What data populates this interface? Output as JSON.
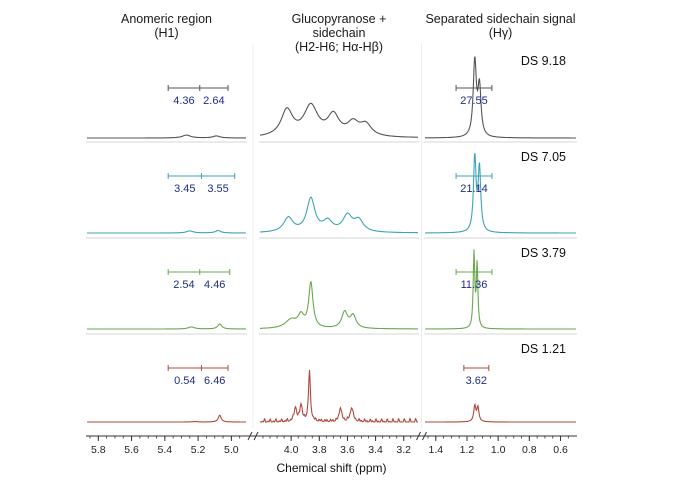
{
  "chart_data": {
    "type": "line",
    "xlabel": "Chemical shift (ppm)",
    "panels": [
      {
        "id": "anomeric",
        "title_lines": [
          "Anomeric region",
          "(H1)"
        ],
        "xlim": [
          5.85,
          4.93
        ],
        "ticks": [
          "5.8",
          "5.6",
          "5.4",
          "5.2",
          "5.0"
        ]
      },
      {
        "id": "glucopyranose",
        "title_lines": [
          "Glucopyranose +",
          "sidechain",
          "(H2-H6; Hα-Hβ)"
        ],
        "xlim": [
          4.2,
          3.12
        ],
        "ticks": [
          "4.0",
          "3.8",
          "3.6",
          "3.4",
          "3.2"
        ]
      },
      {
        "id": "sidechain",
        "title_lines": [
          "Separated sidechain signal",
          "(Hγ)"
        ],
        "xlim": [
          1.45,
          0.52
        ],
        "ticks": [
          "1.4",
          "1.2",
          "1.0",
          "0.8",
          "0.6"
        ]
      }
    ],
    "series": [
      {
        "name": "DS 9.18",
        "color": "#555555",
        "h1_integrals": [
          {
            "value": "4.36",
            "range": [
              5.38,
              5.19
            ]
          },
          {
            "value": "2.64",
            "range": [
              5.19,
              5.02
            ]
          }
        ],
        "sidechain_integral": {
          "value": "27.55",
          "range": [
            1.27,
            1.04
          ]
        },
        "peaks": {
          "anomeric": [
            {
              "ppm": 5.27,
              "height": 0.14,
              "width": 0.03
            },
            {
              "ppm": 5.09,
              "height": 0.1,
              "width": 0.025
            }
          ],
          "glucopyranose": [
            {
              "ppm": 4.03,
              "height": 0.45,
              "width": 0.05
            },
            {
              "ppm": 3.86,
              "height": 0.52,
              "width": 0.06
            },
            {
              "ppm": 3.7,
              "height": 0.35,
              "width": 0.05
            },
            {
              "ppm": 3.56,
              "height": 0.22,
              "width": 0.05
            },
            {
              "ppm": 3.47,
              "height": 0.2,
              "width": 0.05
            }
          ],
          "sidechain": [
            {
              "ppm": 1.15,
              "height": 1.0,
              "width": 0.012
            },
            {
              "ppm": 1.12,
              "height": 0.65,
              "width": 0.012
            }
          ]
        }
      },
      {
        "name": "DS 7.05",
        "color": "#3fa3b5",
        "h1_integrals": [
          {
            "value": "3.45",
            "range": [
              5.38,
              5.18
            ]
          },
          {
            "value": "3.55",
            "range": [
              5.18,
              4.98
            ]
          }
        ],
        "sidechain_integral": {
          "value": "21.14",
          "range": [
            1.27,
            1.04
          ]
        },
        "peaks": {
          "anomeric": [
            {
              "ppm": 5.25,
              "height": 0.1,
              "width": 0.025
            },
            {
              "ppm": 5.08,
              "height": 0.12,
              "width": 0.02
            }
          ],
          "glucopyranose": [
            {
              "ppm": 4.02,
              "height": 0.25,
              "width": 0.04
            },
            {
              "ppm": 3.86,
              "height": 0.58,
              "width": 0.035
            },
            {
              "ppm": 3.74,
              "height": 0.18,
              "width": 0.04
            },
            {
              "ppm": 3.6,
              "height": 0.28,
              "width": 0.04
            },
            {
              "ppm": 3.52,
              "height": 0.2,
              "width": 0.04
            }
          ],
          "sidechain": [
            {
              "ppm": 1.15,
              "height": 1.0,
              "width": 0.01
            },
            {
              "ppm": 1.12,
              "height": 0.85,
              "width": 0.01
            }
          ]
        }
      },
      {
        "name": "DS 3.79",
        "color": "#6aa84f",
        "h1_integrals": [
          {
            "value": "2.54",
            "range": [
              5.38,
              5.19
            ]
          },
          {
            "value": "4.46",
            "range": [
              5.19,
              5.01
            ]
          }
        ],
        "sidechain_integral": {
          "value": "11.36",
          "range": [
            1.27,
            1.04
          ]
        },
        "peaks": {
          "anomeric": [
            {
              "ppm": 5.24,
              "height": 0.1,
              "width": 0.022
            },
            {
              "ppm": 5.07,
              "height": 0.24,
              "width": 0.015
            }
          ],
          "glucopyranose": [
            {
              "ppm": 4.0,
              "height": 0.15,
              "width": 0.05
            },
            {
              "ppm": 3.93,
              "height": 0.2,
              "width": 0.025
            },
            {
              "ppm": 3.86,
              "height": 0.78,
              "width": 0.018
            },
            {
              "ppm": 3.62,
              "height": 0.28,
              "width": 0.025
            },
            {
              "ppm": 3.56,
              "height": 0.22,
              "width": 0.025
            }
          ],
          "sidechain": [
            {
              "ppm": 1.155,
              "height": 1.0,
              "width": 0.006
            },
            {
              "ppm": 1.135,
              "height": 0.85,
              "width": 0.006
            }
          ]
        }
      },
      {
        "name": "DS 1.21",
        "color": "#b04a3f",
        "h1_integrals": [
          {
            "value": "0.54",
            "range": [
              5.38,
              5.18
            ]
          },
          {
            "value": "6.46",
            "range": [
              5.18,
              5.02
            ]
          }
        ],
        "sidechain_integral": {
          "value": "3.62",
          "range": [
            1.22,
            1.06
          ]
        },
        "peaks": {
          "anomeric": [
            {
              "ppm": 5.22,
              "height": 0.02,
              "width": 0.02
            },
            {
              "ppm": 5.07,
              "height": 0.35,
              "width": 0.01
            }
          ],
          "glucopyranose": [
            {
              "ppm": 3.97,
              "height": 0.25,
              "width": 0.01
            },
            {
              "ppm": 3.93,
              "height": 0.3,
              "width": 0.01
            },
            {
              "ppm": 3.87,
              "height": 0.9,
              "width": 0.008
            },
            {
              "ppm": 3.65,
              "height": 0.25,
              "width": 0.01
            },
            {
              "ppm": 3.57,
              "height": 0.25,
              "width": 0.012
            }
          ],
          "sidechain": [
            {
              "ppm": 1.15,
              "height": 0.22,
              "width": 0.008
            },
            {
              "ppm": 1.13,
              "height": 0.2,
              "width": 0.008
            }
          ]
        }
      }
    ]
  }
}
